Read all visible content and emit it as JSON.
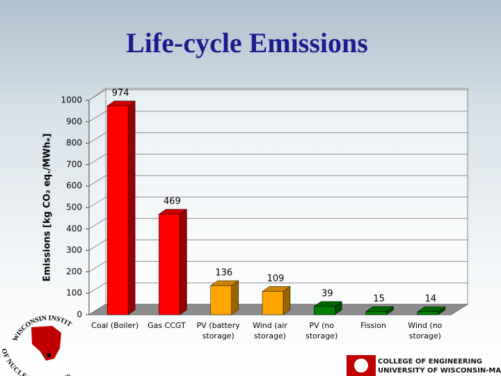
{
  "chart_data": {
    "type": "bar3d",
    "title": "Life-cycle Emissions",
    "y_label": "Emissions [kg CO₂ eq./MWhₑ]",
    "categories": [
      "Coal (Boiler)",
      "Gas CCGT",
      "PV (battery storage)",
      "Wind (air storage)",
      "PV (no storage)",
      "Fission",
      "Wind (no storage)"
    ],
    "values": [
      974,
      469,
      136,
      109,
      39,
      15,
      14
    ],
    "colors": [
      "#ff0000",
      "#ff0000",
      "#ffa500",
      "#ffa500",
      "#008000",
      "#008000",
      "#008000"
    ],
    "ylim": [
      0,
      1000
    ],
    "yticks": [
      0,
      100,
      200,
      300,
      400,
      500,
      600,
      700,
      800,
      900,
      1000
    ],
    "grid": true
  },
  "branding": {
    "institute_top": "WISCONSIN INSTITUTE",
    "institute_bottom": "OF NUCLEAR SYSTEMS",
    "college": "COLLEGE OF ENGINEERING",
    "university": "UNIVERSITY OF WISCONSIN-MADISON"
  }
}
